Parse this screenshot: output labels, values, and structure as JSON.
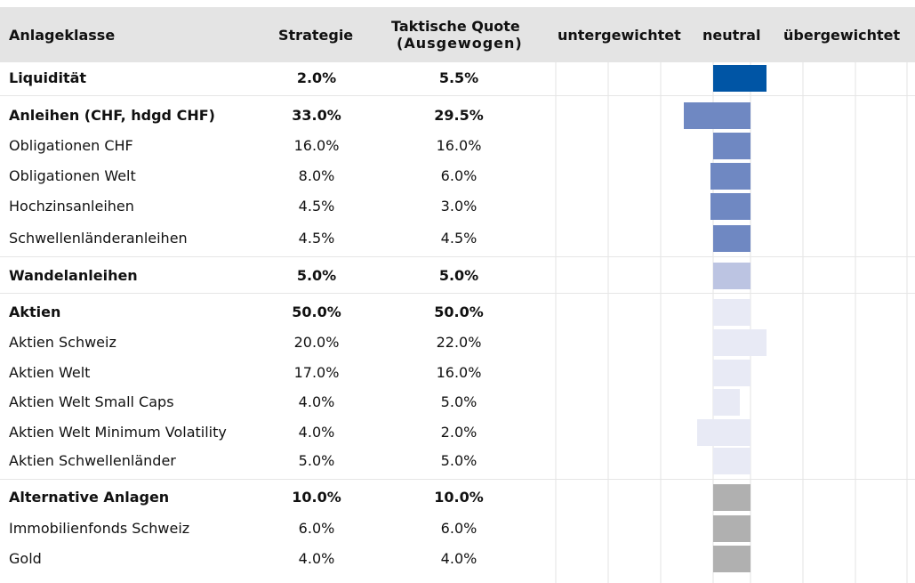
{
  "headers": {
    "asset_class": "Anlageklasse",
    "strategy": "Strategie",
    "tactical_line1": "Taktische Quote",
    "tactical_line2": "(Ausgewogen)",
    "under": "untergewichtet",
    "neutral": "neutral",
    "over": "übergewichtet"
  },
  "rows": [
    {
      "label": "Liquidität",
      "strategy": "2.0%",
      "tactical": "5.5%",
      "bold": true
    },
    {
      "label": "Anleihen (CHF, hdgd CHF)",
      "strategy": "33.0%",
      "tactical": "29.5%",
      "bold": true
    },
    {
      "label": "Obligationen CHF",
      "strategy": "16.0%",
      "tactical": "16.0%",
      "bold": false
    },
    {
      "label": "Obligationen Welt",
      "strategy": "8.0%",
      "tactical": "6.0%",
      "bold": false
    },
    {
      "label": "Hochzinsanleihen",
      "strategy": "4.5%",
      "tactical": "3.0%",
      "bold": false
    },
    {
      "label": "Schwellenländeranleihen",
      "strategy": "4.5%",
      "tactical": "4.5%",
      "bold": false
    },
    {
      "label": "Wandelanleihen",
      "strategy": "5.0%",
      "tactical": "5.0%",
      "bold": true
    },
    {
      "label": "Aktien",
      "strategy": "50.0%",
      "tactical": "50.0%",
      "bold": true
    },
    {
      "label": "Aktien Schweiz",
      "strategy": "20.0%",
      "tactical": "22.0%",
      "bold": false
    },
    {
      "label": "Aktien Welt",
      "strategy": "17.0%",
      "tactical": "16.0%",
      "bold": false
    },
    {
      "label": "Aktien Welt Small Caps",
      "strategy": "4.0%",
      "tactical": "5.0%",
      "bold": false
    },
    {
      "label": "Aktien Welt Minimum Volatility",
      "strategy": "4.0%",
      "tactical": "2.0%",
      "bold": false
    },
    {
      "label": "Aktien Schwellenländer",
      "strategy": "5.0%",
      "tactical": "5.0%",
      "bold": false
    },
    {
      "label": "Alternative Anlagen",
      "strategy": "10.0%",
      "tactical": "10.0%",
      "bold": true
    },
    {
      "label": "Immobilienfonds Schweiz",
      "strategy": "6.0%",
      "tactical": "6.0%",
      "bold": false
    },
    {
      "label": "Gold",
      "strategy": "4.0%",
      "tactical": "4.0%",
      "bold": false
    }
  ],
  "chart_data": {
    "type": "bar",
    "orientation": "horizontal",
    "categories": [
      "Liquidität",
      "Anleihen (CHF, hdgd CHF)",
      "Obligationen CHF",
      "Obligationen Welt",
      "Hochzinsanleihen",
      "Schwellenländeranleihen",
      "Wandelanleihen",
      "Aktien",
      "Aktien Schweiz",
      "Aktien Welt",
      "Aktien Welt Small Caps",
      "Aktien Welt Minimum Volatility",
      "Aktien Schwellenländer",
      "Alternative Anlagen",
      "Immobilienfonds Schweiz",
      "Gold"
    ],
    "strategy": [
      2.0,
      33.0,
      16.0,
      8.0,
      4.5,
      4.5,
      5.0,
      50.0,
      20.0,
      17.0,
      4.0,
      4.0,
      5.0,
      10.0,
      6.0,
      4.0
    ],
    "tactical": [
      5.5,
      29.5,
      16.0,
      6.0,
      3.0,
      4.5,
      5.0,
      50.0,
      22.0,
      16.0,
      5.0,
      2.0,
      5.0,
      10.0,
      6.0,
      4.0
    ],
    "positioning": [
      2,
      -2.5,
      0,
      -1.5,
      -1.5,
      0,
      0,
      0,
      2,
      0,
      1,
      -2,
      0,
      0,
      0,
      0
    ],
    "scale_labels": [
      "untergewichtet",
      "neutral",
      "übergewichtet"
    ],
    "colors": [
      "#0055a5",
      "#6f88c2",
      "#6f88c2",
      "#6f88c2",
      "#6f88c2",
      "#6f88c2",
      "#bcc4e2",
      "#e8eaf5",
      "#e8eaf5",
      "#e8eaf5",
      "#e8eaf5",
      "#e8eaf5",
      "#e8eaf5",
      "#b0b0b0",
      "#b0b0b0",
      "#b0b0b0"
    ],
    "grid": true
  }
}
